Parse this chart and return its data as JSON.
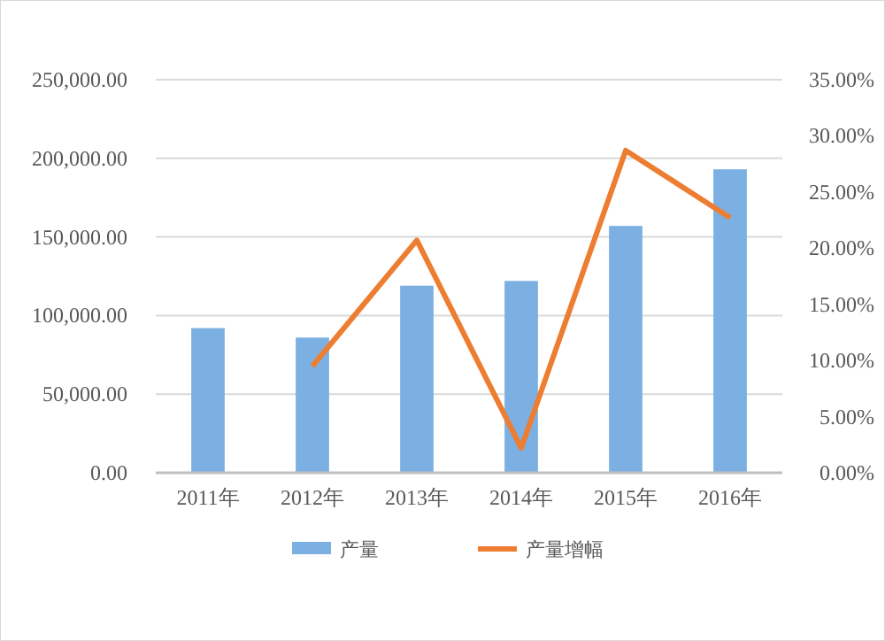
{
  "chart_data": {
    "type": "bar",
    "categories": [
      "2011年",
      "2012年",
      "2013年",
      "2014年",
      "2015年",
      "2016年"
    ],
    "series": [
      {
        "name": "产量",
        "color": "#7cb0e2",
        "values": [
          92000,
          86000,
          119000,
          122000,
          157000,
          193000
        ]
      },
      {
        "name": "产量增幅",
        "type": "line",
        "axis": "y2",
        "color": "#ed7d31",
        "values": [
          null,
          9.5,
          20.7,
          2.2,
          28.7,
          22.7
        ]
      }
    ],
    "ylim": [
      0,
      250000
    ],
    "yticks": [
      {
        "value": 0,
        "label": "0.00"
      },
      {
        "value": 50000,
        "label": "50,000.00"
      },
      {
        "value": 100000,
        "label": "100,000.00"
      },
      {
        "value": 150000,
        "label": "150,000.00"
      },
      {
        "value": 200000,
        "label": "200,000.00"
      },
      {
        "value": 250000,
        "label": "250,000.00"
      }
    ],
    "y2lim": [
      0,
      35
    ],
    "y2ticks": [
      {
        "value": 0,
        "label": "0.00%"
      },
      {
        "value": 5,
        "label": "5.00%"
      },
      {
        "value": 10,
        "label": "10.00%"
      },
      {
        "value": 15,
        "label": "15.00%"
      },
      {
        "value": 20,
        "label": "20.00%"
      },
      {
        "value": 25,
        "label": "25.00%"
      },
      {
        "value": 30,
        "label": "30.00%"
      },
      {
        "value": 35,
        "label": "35.00%"
      }
    ],
    "grid": "y",
    "legend": "bottom",
    "marker": "none"
  }
}
